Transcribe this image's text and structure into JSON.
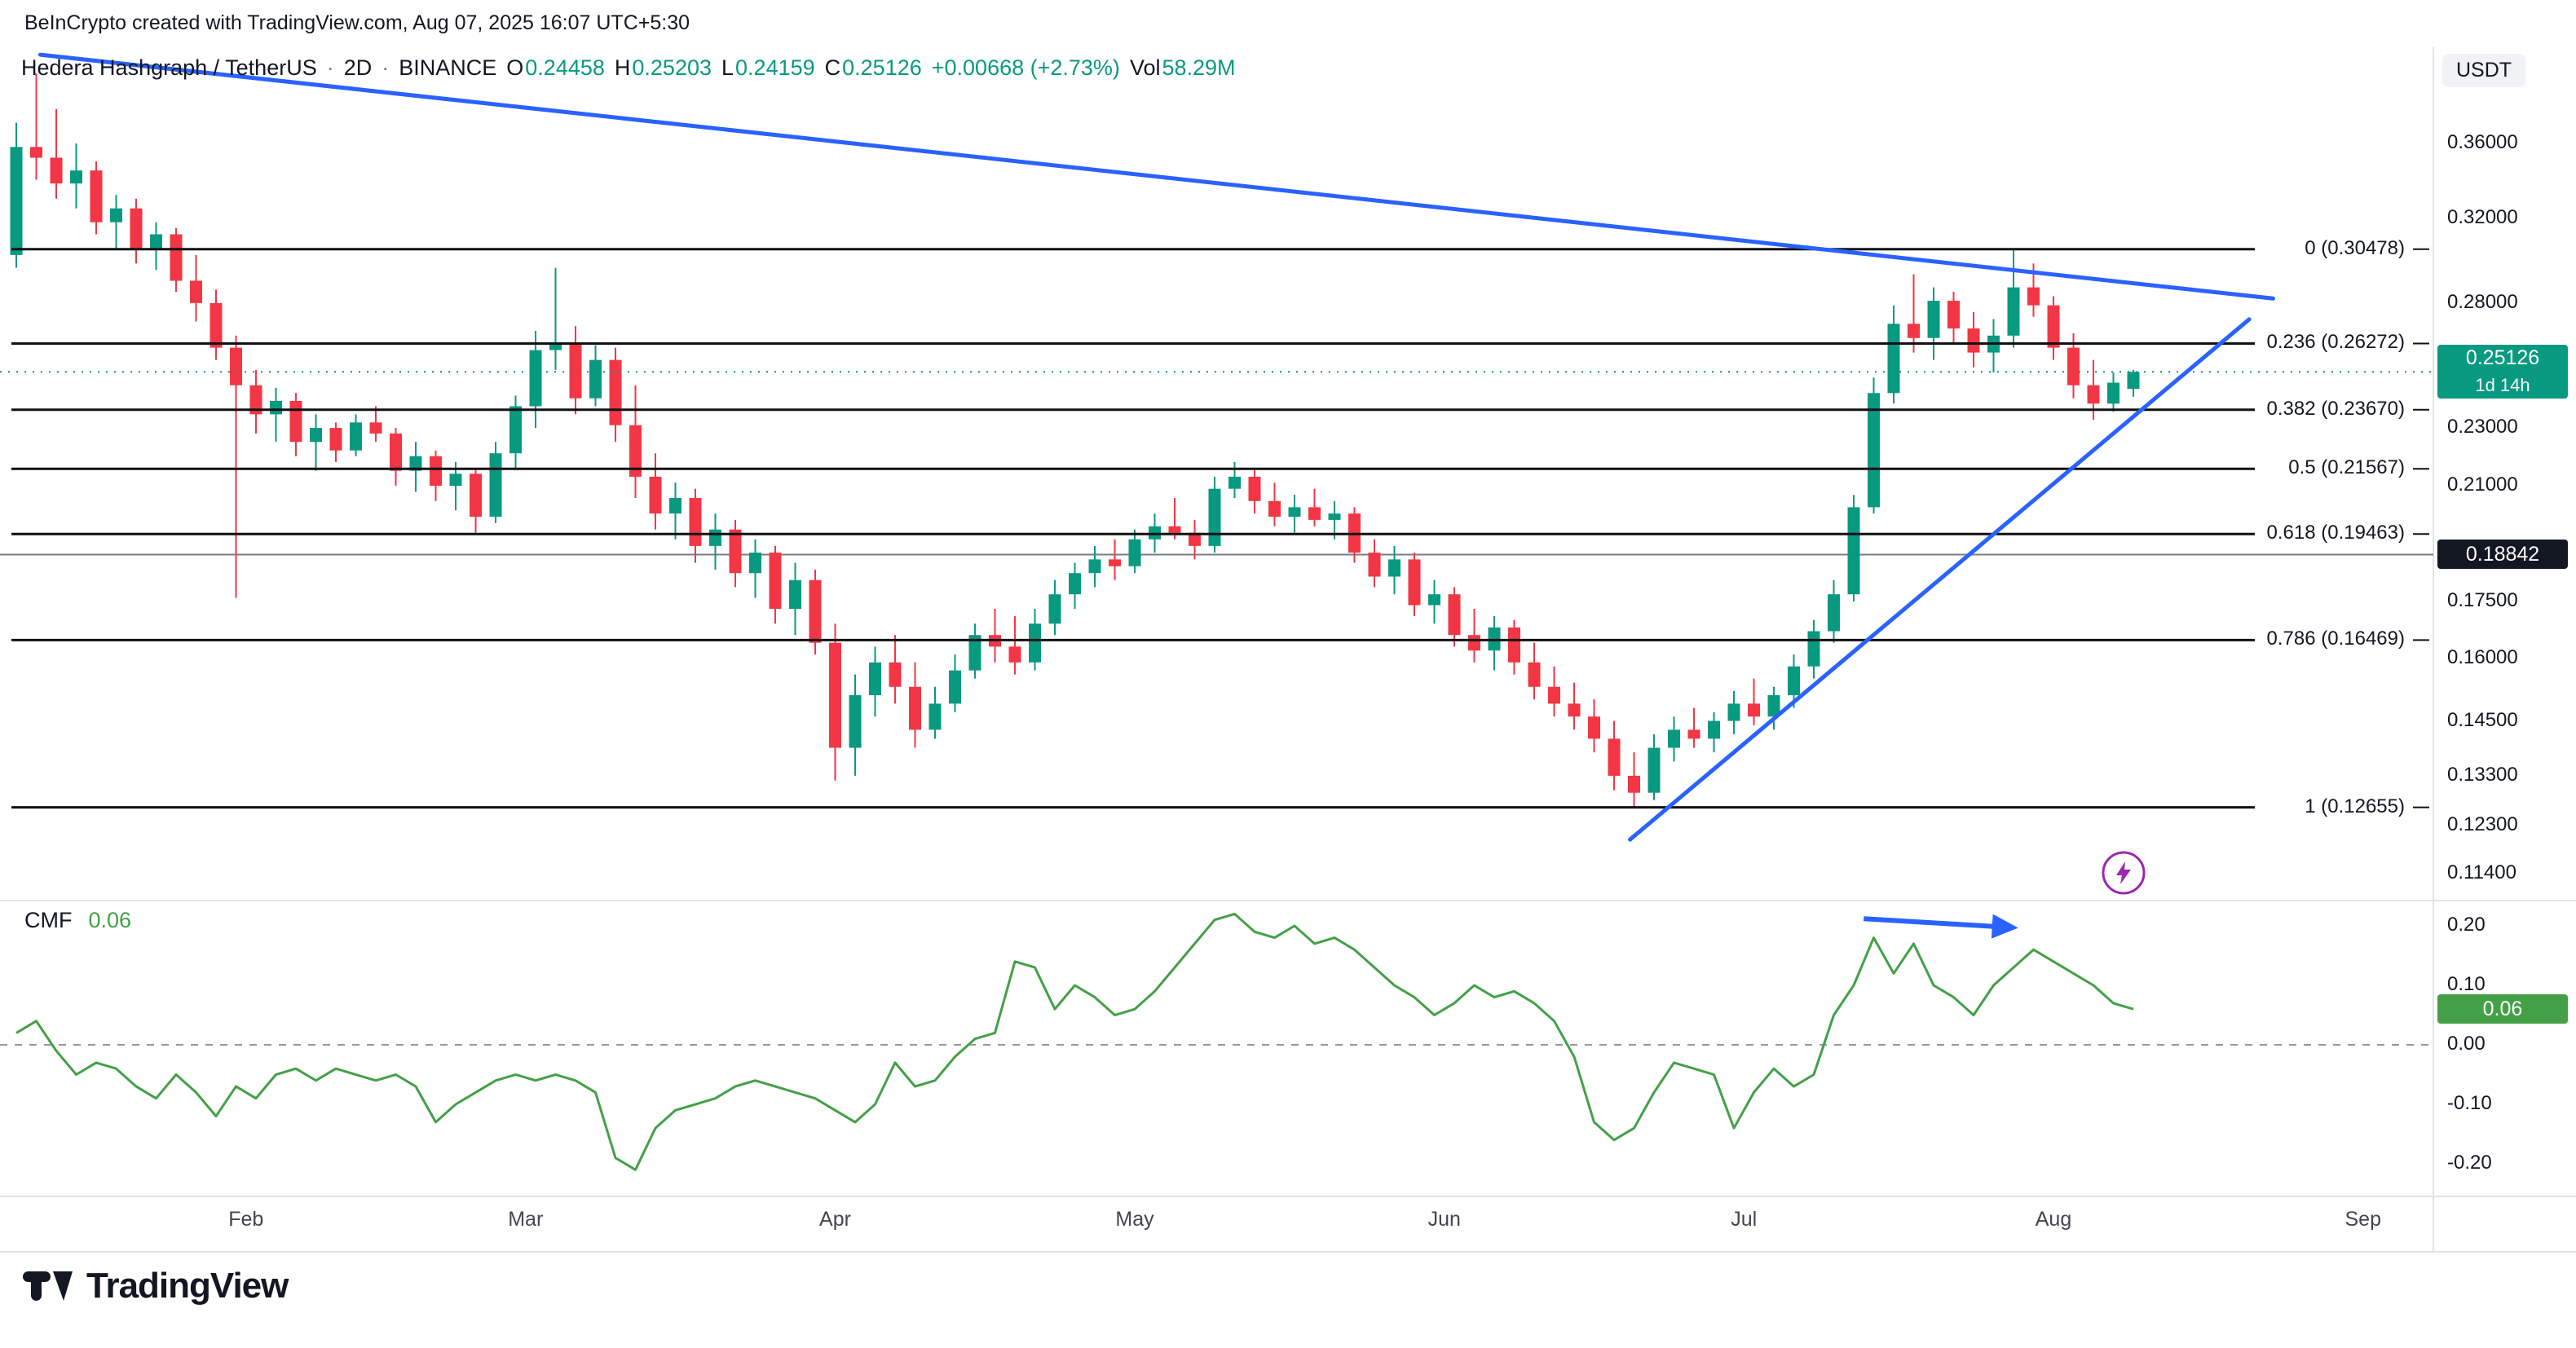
{
  "attribution": "BeInCrypto created with TradingView.com, Aug 07, 2025 16:07 UTC+5:30",
  "header": {
    "symbol": "Hedera Hashgraph / TetherUS",
    "separator": "·",
    "timeframe": "2D",
    "exchange": "BINANCE",
    "ohlc": [
      {
        "label": "O",
        "value": "0.24458"
      },
      {
        "label": "H",
        "value": "0.25203"
      },
      {
        "label": "L",
        "value": "0.24159"
      },
      {
        "label": "C",
        "value": "0.25126"
      }
    ],
    "change": "+0.00668 (+2.73%)",
    "volume_label": "Vol",
    "volume_value": "58.29M"
  },
  "price_axis": {
    "currency": "USDT",
    "current_badge": {
      "price": "0.25126",
      "countdown": "1d 14h",
      "value": 0.25126
    },
    "level_badge": {
      "price": "0.18842",
      "value": 0.18842
    }
  },
  "cmf": {
    "title": "CMF",
    "value": "0.06",
    "value_num": 0.06
  },
  "logo": {
    "text": "TradingView"
  },
  "icons": {
    "flash": "lightning-bolt-in-circle",
    "logo_mark": "tradingview-tv-mark"
  },
  "colors": {
    "up": "#089981",
    "down": "#f23645",
    "accent_blue": "#2962ff",
    "cmf_green": "#43a047",
    "purple": "#9c27b0",
    "text": "#131722",
    "muted": "#787b86",
    "separator": "#e0e3eb",
    "badge_dark": "#131722",
    "fib_line": "#111111"
  },
  "chart_data": {
    "type": "candlestick",
    "title": "Hedera Hashgraph / TetherUS · 2D · BINANCE",
    "scale": "log",
    "legend_position": "top-left",
    "grid": false,
    "price_ticks": [
      {
        "label": "0.36000",
        "value": 0.36
      },
      {
        "label": "0.32000",
        "value": 0.32
      },
      {
        "label": "0.28000",
        "value": 0.28
      },
      {
        "label": "0.23000",
        "value": 0.23
      },
      {
        "label": "0.21000",
        "value": 0.21
      },
      {
        "label": "0.17500",
        "value": 0.175
      },
      {
        "label": "0.16000",
        "value": 0.16
      },
      {
        "label": "0.14500",
        "value": 0.145
      },
      {
        "label": "0.13300",
        "value": 0.133
      },
      {
        "label": "0.12300",
        "value": 0.123
      },
      {
        "label": "0.11400",
        "value": 0.114
      }
    ],
    "fib_levels": [
      {
        "label": "0 (0.30478)",
        "price": 0.30478
      },
      {
        "label": "0.236 (0.26272)",
        "price": 0.26272
      },
      {
        "label": "0.382 (0.23670)",
        "price": 0.2367
      },
      {
        "label": "0.5 (0.21567)",
        "price": 0.21567
      },
      {
        "label": "0.618 (0.19463)",
        "price": 0.19463
      },
      {
        "label": "0.786 (0.16469)",
        "price": 0.16469
      },
      {
        "label": "1 (0.12655)",
        "price": 0.12655
      }
    ],
    "horizontal_level": 0.18842,
    "last_price": 0.25126,
    "months": [
      {
        "label": "Feb",
        "index": 11.5
      },
      {
        "label": "Mar",
        "index": 25.5
      },
      {
        "label": "Apr",
        "index": 41
      },
      {
        "label": "May",
        "index": 56
      },
      {
        "label": "Jun",
        "index": 71.5
      },
      {
        "label": "Jul",
        "index": 86.5
      },
      {
        "label": "Aug",
        "index": 102
      },
      {
        "label": "Sep",
        "index": 117.5
      }
    ],
    "candles": [
      [
        0.302,
        0.372,
        0.296,
        0.358
      ],
      [
        0.358,
        0.402,
        0.34,
        0.352
      ],
      [
        0.352,
        0.38,
        0.33,
        0.338
      ],
      [
        0.338,
        0.36,
        0.325,
        0.345
      ],
      [
        0.345,
        0.35,
        0.312,
        0.318
      ],
      [
        0.318,
        0.332,
        0.305,
        0.325
      ],
      [
        0.325,
        0.33,
        0.298,
        0.305
      ],
      [
        0.305,
        0.318,
        0.295,
        0.312
      ],
      [
        0.312,
        0.315,
        0.285,
        0.29
      ],
      [
        0.29,
        0.302,
        0.272,
        0.28
      ],
      [
        0.28,
        0.286,
        0.256,
        0.261
      ],
      [
        0.261,
        0.266,
        0.176,
        0.246
      ],
      [
        0.246,
        0.252,
        0.228,
        0.235
      ],
      [
        0.235,
        0.245,
        0.225,
        0.24
      ],
      [
        0.24,
        0.243,
        0.22,
        0.225
      ],
      [
        0.225,
        0.235,
        0.215,
        0.23
      ],
      [
        0.23,
        0.232,
        0.218,
        0.222
      ],
      [
        0.222,
        0.235,
        0.22,
        0.232
      ],
      [
        0.232,
        0.238,
        0.225,
        0.228
      ],
      [
        0.228,
        0.23,
        0.21,
        0.215
      ],
      [
        0.215,
        0.225,
        0.208,
        0.22
      ],
      [
        0.22,
        0.222,
        0.205,
        0.21
      ],
      [
        0.21,
        0.218,
        0.202,
        0.214
      ],
      [
        0.214,
        0.216,
        0.195,
        0.2
      ],
      [
        0.2,
        0.225,
        0.198,
        0.221
      ],
      [
        0.221,
        0.242,
        0.216,
        0.238
      ],
      [
        0.238,
        0.268,
        0.23,
        0.26
      ],
      [
        0.26,
        0.296,
        0.252,
        0.263
      ],
      [
        0.263,
        0.27,
        0.235,
        0.241
      ],
      [
        0.241,
        0.262,
        0.238,
        0.256
      ],
      [
        0.256,
        0.261,
        0.225,
        0.231
      ],
      [
        0.231,
        0.246,
        0.206,
        0.213
      ],
      [
        0.213,
        0.221,
        0.196,
        0.201
      ],
      [
        0.201,
        0.211,
        0.193,
        0.206
      ],
      [
        0.206,
        0.209,
        0.186,
        0.191
      ],
      [
        0.191,
        0.201,
        0.184,
        0.196
      ],
      [
        0.196,
        0.199,
        0.179,
        0.183
      ],
      [
        0.183,
        0.193,
        0.176,
        0.189
      ],
      [
        0.189,
        0.191,
        0.169,
        0.173
      ],
      [
        0.173,
        0.186,
        0.166,
        0.181
      ],
      [
        0.181,
        0.184,
        0.161,
        0.164
      ],
      [
        0.164,
        0.169,
        0.132,
        0.139
      ],
      [
        0.139,
        0.156,
        0.133,
        0.151
      ],
      [
        0.151,
        0.163,
        0.146,
        0.159
      ],
      [
        0.159,
        0.166,
        0.149,
        0.153
      ],
      [
        0.153,
        0.159,
        0.139,
        0.143
      ],
      [
        0.143,
        0.153,
        0.141,
        0.149
      ],
      [
        0.149,
        0.161,
        0.147,
        0.157
      ],
      [
        0.157,
        0.169,
        0.155,
        0.166
      ],
      [
        0.166,
        0.173,
        0.159,
        0.163
      ],
      [
        0.163,
        0.171,
        0.156,
        0.159
      ],
      [
        0.159,
        0.173,
        0.157,
        0.169
      ],
      [
        0.169,
        0.181,
        0.166,
        0.177
      ],
      [
        0.177,
        0.186,
        0.173,
        0.183
      ],
      [
        0.183,
        0.191,
        0.179,
        0.187
      ],
      [
        0.187,
        0.193,
        0.181,
        0.185
      ],
      [
        0.185,
        0.196,
        0.183,
        0.193
      ],
      [
        0.193,
        0.201,
        0.189,
        0.197
      ],
      [
        0.197,
        0.206,
        0.193,
        0.195
      ],
      [
        0.195,
        0.199,
        0.187,
        0.191
      ],
      [
        0.191,
        0.213,
        0.189,
        0.209
      ],
      [
        0.209,
        0.218,
        0.206,
        0.213
      ],
      [
        0.213,
        0.216,
        0.201,
        0.205
      ],
      [
        0.205,
        0.211,
        0.197,
        0.2
      ],
      [
        0.2,
        0.207,
        0.195,
        0.203
      ],
      [
        0.203,
        0.209,
        0.197,
        0.199
      ],
      [
        0.199,
        0.205,
        0.193,
        0.201
      ],
      [
        0.201,
        0.203,
        0.186,
        0.189
      ],
      [
        0.189,
        0.193,
        0.179,
        0.182
      ],
      [
        0.182,
        0.191,
        0.177,
        0.187
      ],
      [
        0.187,
        0.189,
        0.171,
        0.174
      ],
      [
        0.174,
        0.181,
        0.169,
        0.177
      ],
      [
        0.177,
        0.179,
        0.163,
        0.166
      ],
      [
        0.166,
        0.173,
        0.159,
        0.162
      ],
      [
        0.162,
        0.171,
        0.157,
        0.168
      ],
      [
        0.168,
        0.17,
        0.156,
        0.159
      ],
      [
        0.159,
        0.164,
        0.15,
        0.153
      ],
      [
        0.153,
        0.158,
        0.146,
        0.149
      ],
      [
        0.149,
        0.154,
        0.143,
        0.146
      ],
      [
        0.146,
        0.15,
        0.138,
        0.141
      ],
      [
        0.141,
        0.145,
        0.13,
        0.133
      ],
      [
        0.133,
        0.138,
        0.1266,
        0.1295
      ],
      [
        0.1295,
        0.142,
        0.128,
        0.139
      ],
      [
        0.139,
        0.146,
        0.136,
        0.143
      ],
      [
        0.143,
        0.148,
        0.139,
        0.141
      ],
      [
        0.141,
        0.147,
        0.138,
        0.145
      ],
      [
        0.145,
        0.152,
        0.142,
        0.149
      ],
      [
        0.149,
        0.155,
        0.144,
        0.146
      ],
      [
        0.146,
        0.153,
        0.143,
        0.151
      ],
      [
        0.151,
        0.161,
        0.148,
        0.158
      ],
      [
        0.158,
        0.17,
        0.155,
        0.167
      ],
      [
        0.167,
        0.181,
        0.164,
        0.177
      ],
      [
        0.177,
        0.207,
        0.175,
        0.203
      ],
      [
        0.203,
        0.249,
        0.201,
        0.243
      ],
      [
        0.243,
        0.279,
        0.239,
        0.271
      ],
      [
        0.271,
        0.293,
        0.259,
        0.265
      ],
      [
        0.265,
        0.287,
        0.256,
        0.281
      ],
      [
        0.281,
        0.285,
        0.263,
        0.269
      ],
      [
        0.269,
        0.276,
        0.253,
        0.259
      ],
      [
        0.259,
        0.273,
        0.251,
        0.266
      ],
      [
        0.266,
        0.30478,
        0.261,
        0.287
      ],
      [
        0.287,
        0.298,
        0.274,
        0.279
      ],
      [
        0.279,
        0.283,
        0.256,
        0.261
      ],
      [
        0.261,
        0.267,
        0.241,
        0.246
      ],
      [
        0.246,
        0.256,
        0.233,
        0.239
      ],
      [
        0.239,
        0.251,
        0.236,
        0.247
      ],
      [
        0.24458,
        0.25203,
        0.24159,
        0.25126
      ]
    ],
    "indicator": {
      "name": "CMF",
      "type": "line",
      "current": 0.06,
      "ticks": [
        {
          "label": "0.20",
          "value": 0.2
        },
        {
          "label": "0.10",
          "value": 0.1
        },
        {
          "label": "0.00",
          "value": 0.0
        },
        {
          "label": "-0.10",
          "value": -0.1
        },
        {
          "label": "-0.20",
          "value": -0.2
        }
      ],
      "values": [
        0.02,
        0.04,
        -0.01,
        -0.05,
        -0.03,
        -0.04,
        -0.07,
        -0.09,
        -0.05,
        -0.08,
        -0.12,
        -0.07,
        -0.09,
        -0.05,
        -0.04,
        -0.06,
        -0.04,
        -0.05,
        -0.06,
        -0.05,
        -0.07,
        -0.13,
        -0.1,
        -0.08,
        -0.06,
        -0.05,
        -0.06,
        -0.05,
        -0.06,
        -0.08,
        -0.19,
        -0.21,
        -0.14,
        -0.11,
        -0.1,
        -0.09,
        -0.07,
        -0.06,
        -0.07,
        -0.08,
        -0.09,
        -0.11,
        -0.13,
        -0.1,
        -0.03,
        -0.07,
        -0.06,
        -0.02,
        0.01,
        0.02,
        0.14,
        0.13,
        0.06,
        0.1,
        0.08,
        0.05,
        0.06,
        0.09,
        0.13,
        0.17,
        0.21,
        0.22,
        0.19,
        0.18,
        0.2,
        0.17,
        0.18,
        0.16,
        0.13,
        0.1,
        0.08,
        0.05,
        0.07,
        0.1,
        0.08,
        0.09,
        0.07,
        0.04,
        -0.02,
        -0.13,
        -0.16,
        -0.14,
        -0.08,
        -0.03,
        -0.04,
        -0.05,
        -0.14,
        -0.08,
        -0.04,
        -0.07,
        -0.05,
        0.05,
        0.1,
        0.18,
        0.12,
        0.17,
        0.1,
        0.08,
        0.05,
        0.1,
        0.13,
        0.16,
        0.14,
        0.12,
        0.1,
        0.07,
        0.06
      ]
    },
    "annotations": {
      "triangle_upper": {
        "from": {
          "i": 1.2,
          "p": 0.414
        },
        "to": {
          "i": 113,
          "p": 0.282
        }
      },
      "triangle_lower": {
        "from": {
          "i": 80.8,
          "p": 0.1203
        },
        "to": {
          "i": 111.8,
          "p": 0.2729
        }
      },
      "cmf_arrow": {
        "from": {
          "i": 92.5,
          "v": 0.212
        },
        "to": {
          "i": 99.5,
          "v": 0.198
        }
      }
    }
  }
}
